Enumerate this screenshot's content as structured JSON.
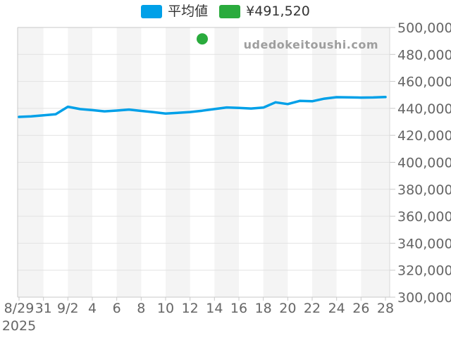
{
  "legend": {
    "series_label": "平均値",
    "point_label": "¥491,520"
  },
  "watermark": "udedokeitoushi.com",
  "x_axis": {
    "year_label": "2025",
    "tick_labels": [
      "8/29",
      "31",
      "9/2",
      "4",
      "6",
      "8",
      "10",
      "12",
      "14",
      "16",
      "18",
      "20",
      "22",
      "24",
      "26",
      "28"
    ]
  },
  "y_axis": {
    "tick_labels": [
      "300,000",
      "320,000",
      "340,000",
      "360,000",
      "380,000",
      "400,000",
      "420,000",
      "440,000",
      "460,000",
      "480,000",
      "500,000"
    ]
  },
  "chart_data": {
    "type": "line",
    "title": "",
    "xlabel": "",
    "ylabel": "",
    "ylim": [
      300000,
      500000
    ],
    "ystep": 20000,
    "grid": true,
    "legend_position": "top",
    "x": [
      "8/29",
      "8/30",
      "8/31",
      "9/1",
      "9/2",
      "9/3",
      "9/4",
      "9/5",
      "9/6",
      "9/7",
      "9/8",
      "9/9",
      "9/10",
      "9/11",
      "9/12",
      "9/13",
      "9/14",
      "9/15",
      "9/16",
      "9/17",
      "9/18",
      "9/19",
      "9/20",
      "9/21",
      "9/22",
      "9/23",
      "9/24",
      "9/25",
      "9/26",
      "9/27",
      "9/28"
    ],
    "series": [
      {
        "name": "平均値",
        "color": "#00a0e8",
        "values": [
          433700,
          434100,
          434900,
          435600,
          441200,
          439500,
          438700,
          437800,
          438400,
          439100,
          438100,
          437200,
          436200,
          436700,
          437300,
          438300,
          439500,
          440700,
          440300,
          439900,
          440600,
          444500,
          443200,
          445600,
          445300,
          447200,
          448300,
          448200,
          448000,
          448100,
          448400
        ]
      }
    ],
    "point": {
      "name": "¥491,520",
      "date": "9/13",
      "value": 491520,
      "color": "#2aab3d"
    },
    "colors": {
      "band": "#f4f4f4",
      "grid": "#e2e2e2",
      "axis": "#c9c9c9",
      "label": "#666666"
    }
  }
}
